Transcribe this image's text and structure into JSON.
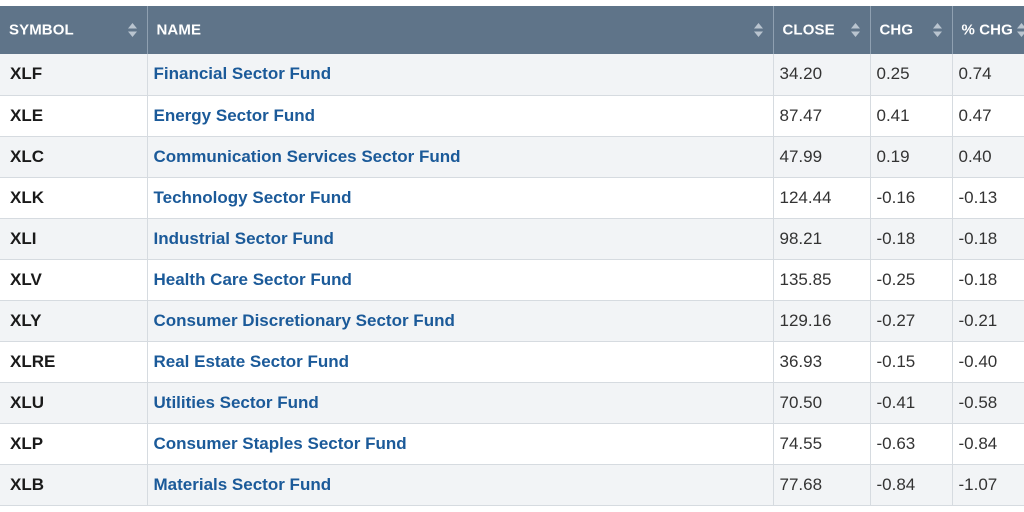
{
  "table": {
    "headers": {
      "symbol": "SYMBOL",
      "name": "NAME",
      "close": "CLOSE",
      "chg": "CHG",
      "pct_chg": "% CHG"
    },
    "rows": [
      {
        "symbol": "XLF",
        "name": "Financial Sector Fund",
        "close": "34.20",
        "chg": "0.25",
        "pct_chg": "0.74"
      },
      {
        "symbol": "XLE",
        "name": "Energy Sector Fund",
        "close": "87.47",
        "chg": "0.41",
        "pct_chg": "0.47"
      },
      {
        "symbol": "XLC",
        "name": "Communication Services Sector Fund",
        "close": "47.99",
        "chg": "0.19",
        "pct_chg": "0.40"
      },
      {
        "symbol": "XLK",
        "name": "Technology Sector Fund",
        "close": "124.44",
        "chg": "-0.16",
        "pct_chg": "-0.13"
      },
      {
        "symbol": "XLI",
        "name": "Industrial Sector Fund",
        "close": "98.21",
        "chg": "-0.18",
        "pct_chg": "-0.18"
      },
      {
        "symbol": "XLV",
        "name": "Health Care Sector Fund",
        "close": "135.85",
        "chg": "-0.25",
        "pct_chg": "-0.18"
      },
      {
        "symbol": "XLY",
        "name": "Consumer Discretionary Sector Fund",
        "close": "129.16",
        "chg": "-0.27",
        "pct_chg": "-0.21"
      },
      {
        "symbol": "XLRE",
        "name": "Real Estate Sector Fund",
        "close": "36.93",
        "chg": "-0.15",
        "pct_chg": "-0.40"
      },
      {
        "symbol": "XLU",
        "name": "Utilities Sector Fund",
        "close": "70.50",
        "chg": "-0.41",
        "pct_chg": "-0.58"
      },
      {
        "symbol": "XLP",
        "name": "Consumer Staples Sector Fund",
        "close": "74.55",
        "chg": "-0.63",
        "pct_chg": "-0.84"
      },
      {
        "symbol": "XLB",
        "name": "Materials Sector Fund",
        "close": "77.68",
        "chg": "-0.84",
        "pct_chg": "-1.07"
      }
    ]
  },
  "colors": {
    "header_bg": "#5f7489",
    "link": "#1b5a99",
    "stripe": "#f2f4f6"
  },
  "icons": {
    "sort": "sort-icon"
  }
}
